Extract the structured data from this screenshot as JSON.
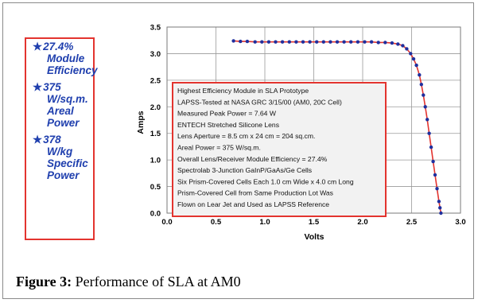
{
  "callout": {
    "items": [
      {
        "lines": [
          "27.4%",
          "Module",
          "Efficiency"
        ]
      },
      {
        "lines": [
          "375",
          "W/sq.m.",
          "Areal",
          "Power"
        ]
      },
      {
        "lines": [
          "378",
          "W/kg",
          "Specific",
          "Power"
        ]
      }
    ],
    "star_glyph": "★"
  },
  "caption": {
    "label": "Figure 3:",
    "text": " Performance of SLA at AM0"
  },
  "colors": {
    "accent_red": "#e3342f",
    "series_blue": "#1f2f9e",
    "callout_text": "#1f3fae",
    "plot_bg": "#ffffff",
    "note_bg": "#f2f2f2"
  },
  "chart_data": {
    "type": "line",
    "xlabel": "Volts",
    "ylabel": "Amps",
    "xlim": [
      0.0,
      3.0
    ],
    "ylim": [
      0.0,
      3.5
    ],
    "x_ticks": [
      "0.0",
      "0.5",
      "1.0",
      "1.5",
      "2.0",
      "2.5",
      "3.0"
    ],
    "y_ticks": [
      "0.0",
      "0.5",
      "1.0",
      "1.5",
      "2.0",
      "2.5",
      "3.0",
      "3.5"
    ],
    "grid": true,
    "series": [
      {
        "color": "#1f2f9e",
        "x": [
          0.68,
          0.75,
          0.82,
          0.9,
          0.97,
          1.04,
          1.11,
          1.18,
          1.25,
          1.32,
          1.39,
          1.46,
          1.53,
          1.6,
          1.67,
          1.74,
          1.81,
          1.88,
          1.95,
          2.02,
          2.09,
          2.16,
          2.23,
          2.3,
          2.36,
          2.41,
          2.45,
          2.49,
          2.52,
          2.55,
          2.58,
          2.6,
          2.62,
          2.64,
          2.66,
          2.68,
          2.7,
          2.72,
          2.74,
          2.76,
          2.78,
          2.79,
          2.8
        ],
        "y": [
          3.24,
          3.23,
          3.23,
          3.22,
          3.22,
          3.22,
          3.22,
          3.22,
          3.22,
          3.22,
          3.22,
          3.22,
          3.22,
          3.22,
          3.22,
          3.22,
          3.22,
          3.22,
          3.22,
          3.22,
          3.22,
          3.21,
          3.21,
          3.2,
          3.18,
          3.15,
          3.09,
          3.0,
          2.9,
          2.78,
          2.6,
          2.42,
          2.22,
          2.0,
          1.76,
          1.5,
          1.24,
          0.97,
          0.72,
          0.46,
          0.22,
          0.1,
          0.0
        ]
      }
    ],
    "annotation_lines": [
      "Highest Efficiency Module in SLA Prototype",
      "LAPSS-Tested at NASA GRC 3/15/00 (AM0, 20C Cell)",
      "Measured Peak Power = 7.64 W",
      "ENTECH Stretched Silicone Lens",
      "Lens Aperture = 8.5 cm x 24 cm = 204 sq.cm.",
      "Areal Power = 375 W/sq.m.",
      "Overall Lens/Receiver Module Efficiency = 27.4%",
      "Spectrolab 3-Junction GaInP/GaAs/Ge Cells",
      "Six Prism-Covered Cells Each 1.0 cm Wide x 4.0 cm Long",
      "Prism-Covered Cell from Same Production Lot Was",
      "Flown on Lear Jet and Used as LAPSS Reference"
    ]
  }
}
